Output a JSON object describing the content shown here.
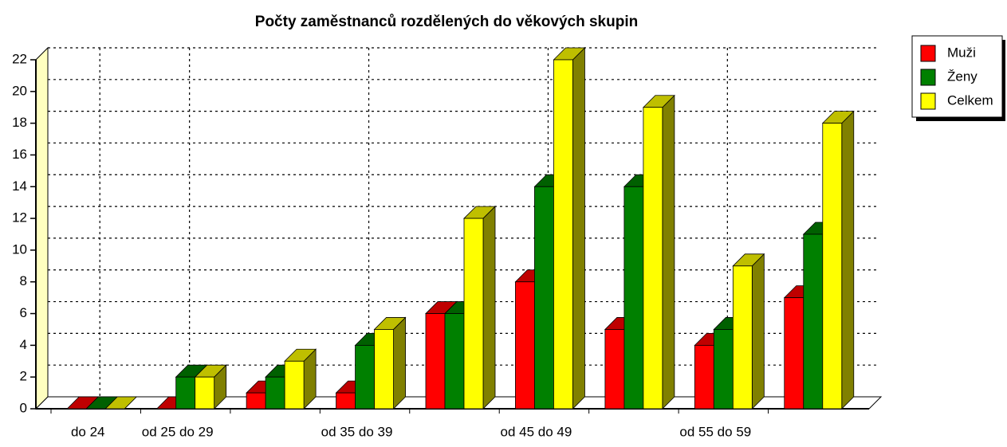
{
  "chart_data": {
    "type": "bar3d",
    "title": "Počty zaměstnanců rozdělených do věkových skupin",
    "categories": [
      "do 24",
      "od 25 do 29",
      null,
      "od 35 do 39",
      null,
      "od 45 do 49",
      null,
      "od 55 do 59",
      null
    ],
    "series": [
      {
        "name": "Muži",
        "color": "#ff0000",
        "values": [
          0,
          0,
          1,
          1,
          6,
          8,
          5,
          4,
          7
        ]
      },
      {
        "name": "Ženy",
        "color": "#008000",
        "values": [
          0,
          2,
          2,
          4,
          6,
          14,
          14,
          5,
          11
        ]
      },
      {
        "name": "Celkem",
        "color": "#ffff00",
        "values": [
          0,
          2,
          3,
          5,
          12,
          22,
          19,
          9,
          18
        ]
      }
    ],
    "ylim": [
      0,
      22
    ],
    "yticks": [
      0,
      2,
      4,
      6,
      8,
      10,
      12,
      14,
      16,
      18,
      20,
      22
    ],
    "grid": true,
    "legend": "top-right"
  }
}
